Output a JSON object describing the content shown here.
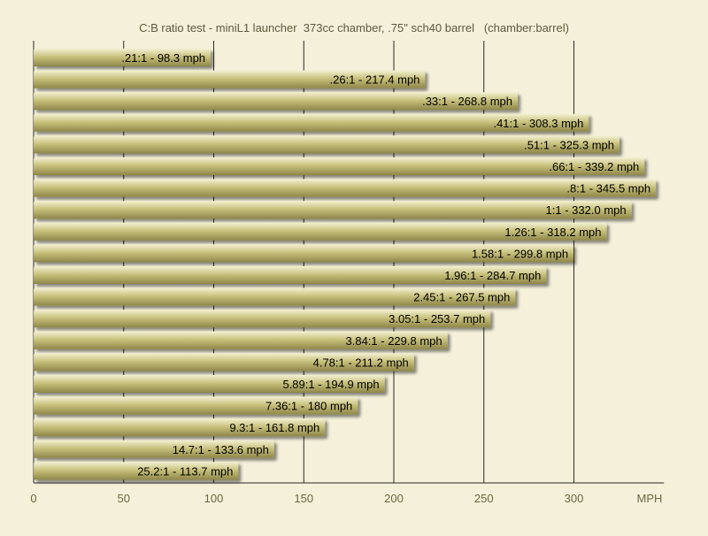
{
  "chart_data": {
    "type": "bar",
    "orientation": "horizontal",
    "title": "C:B ratio test - miniL1 launcher  373cc chamber, .75\" sch40 barrel   (chamber:barrel)",
    "xlabel": "MPH",
    "ylabel": "",
    "xlim": [
      0,
      350
    ],
    "xticks": [
      0,
      50,
      100,
      150,
      200,
      250,
      300
    ],
    "grid": "vertical",
    "categories": [
      ".21:1",
      ".26:1",
      ".33:1",
      ".41:1",
      ".51:1",
      ".66:1",
      ".8:1",
      "1:1",
      "1.26:1",
      "1.58:1",
      "1.96:1",
      "2.45:1",
      "3.05:1",
      "3.84:1",
      "4.78:1",
      "5.89:1",
      "7.36:1",
      "9.3:1",
      "14.7:1",
      "25.2:1"
    ],
    "values": [
      98.3,
      217.4,
      268.8,
      308.3,
      325.3,
      339.2,
      345.5,
      332.0,
      318.2,
      299.8,
      284.7,
      267.5,
      253.7,
      229.8,
      211.2,
      194.9,
      180,
      161.8,
      133.6,
      113.7
    ],
    "labels": [
      ".21:1 - 98.3 mph",
      ".26:1 - 217.4 mph",
      ".33:1 - 268.8 mph",
      ".41:1 - 308.3 mph",
      ".51:1 - 325.3 mph",
      ".66:1 - 339.2 mph",
      ".8:1 - 345.5 mph",
      "1:1 - 332.0 mph",
      "1.26:1 - 318.2 mph",
      "1.58:1 - 299.8 mph",
      "1.96:1 - 284.7 mph",
      "2.45:1 - 267.5 mph",
      "3.05:1 - 253.7 mph",
      "3.84:1 - 229.8 mph",
      "4.78:1 - 211.2 mph",
      "5.89:1 - 194.9 mph",
      "7.36:1 - 180 mph",
      "9.3:1 - 161.8 mph",
      "14.7:1 - 133.6 mph",
      "25.2:1 - 113.7 mph"
    ],
    "colors": {
      "background": "#f4f0da",
      "bar": "#c9c27e",
      "bar_light": "#f3f0d2",
      "bar_dark": "#8e8748",
      "grid": "#2a2a2a",
      "tick_text": "#6d6740",
      "title_text": "#5e5a3c"
    }
  }
}
